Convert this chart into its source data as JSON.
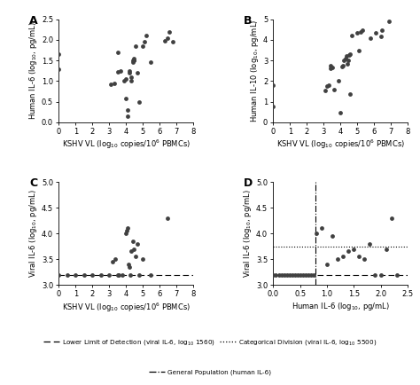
{
  "panel_A": {
    "label": "A",
    "x": [
      0.0,
      0.0,
      3.1,
      3.3,
      3.5,
      3.5,
      3.7,
      3.9,
      4.0,
      4.0,
      4.1,
      4.1,
      4.2,
      4.2,
      4.3,
      4.3,
      4.4,
      4.4,
      4.5,
      4.5,
      4.5,
      4.6,
      4.7,
      4.8,
      5.0,
      5.1,
      5.2,
      5.5,
      6.3,
      6.5,
      6.6,
      6.8
    ],
    "y": [
      1.65,
      1.28,
      0.92,
      0.95,
      1.22,
      1.7,
      1.25,
      1.0,
      0.57,
      1.05,
      0.15,
      0.3,
      1.2,
      1.25,
      1.0,
      1.1,
      1.45,
      1.5,
      1.5,
      1.55,
      1.5,
      1.85,
      1.2,
      0.5,
      1.85,
      1.95,
      2.1,
      1.45,
      1.98,
      2.05,
      2.2,
      1.95
    ],
    "xlabel": "KSHV VL (log$_{10}$ copies/10$^6$ PBMCs)",
    "ylabel": "Human IL-6 (log$_{10}$, pg/mL)",
    "xlim": [
      0.0,
      8.0
    ],
    "ylim": [
      0.0,
      2.5
    ],
    "xticks": [
      0.0,
      1.0,
      2.0,
      3.0,
      4.0,
      5.0,
      6.0,
      7.0,
      8.0
    ],
    "yticks": [
      0.0,
      0.5,
      1.0,
      1.5,
      2.0,
      2.5
    ]
  },
  "panel_B": {
    "label": "B",
    "x": [
      0.0,
      0.0,
      3.1,
      3.2,
      3.3,
      3.4,
      3.4,
      3.5,
      3.6,
      3.9,
      4.0,
      4.1,
      4.15,
      4.2,
      4.3,
      4.35,
      4.4,
      4.45,
      4.5,
      4.55,
      4.6,
      4.7,
      5.0,
      5.1,
      5.2,
      5.3,
      5.8,
      6.1,
      6.4,
      6.5,
      6.9
    ],
    "y": [
      1.78,
      0.75,
      1.55,
      1.75,
      1.78,
      2.6,
      2.75,
      2.65,
      1.58,
      2.0,
      0.45,
      2.72,
      2.75,
      3.0,
      3.1,
      3.2,
      2.85,
      3.0,
      3.25,
      1.35,
      3.3,
      4.2,
      4.35,
      3.5,
      4.4,
      4.45,
      4.1,
      4.35,
      4.15,
      4.45,
      4.9
    ],
    "xlabel": "KSHV VL (log$_{10}$ copies/10$^6$ PBMCs)",
    "ylabel": "Human IL-10 (log$_{10}$, pg/mL)",
    "xlim": [
      0.0,
      8.0
    ],
    "ylim": [
      0.0,
      5.0
    ],
    "xticks": [
      0.0,
      1.0,
      2.0,
      3.0,
      4.0,
      5.0,
      6.0,
      7.0,
      8.0
    ],
    "yticks": [
      0.0,
      1.0,
      2.0,
      3.0,
      4.0,
      5.0
    ]
  },
  "panel_C": {
    "label": "C",
    "x": [
      0.0,
      0.5,
      1.0,
      1.5,
      2.0,
      2.5,
      3.0,
      3.2,
      3.35,
      3.5,
      3.6,
      3.8,
      4.0,
      4.05,
      4.1,
      4.15,
      4.2,
      4.25,
      4.3,
      4.4,
      4.5,
      4.6,
      4.7,
      4.8,
      5.0,
      5.5,
      6.5
    ],
    "y": [
      3.2,
      3.2,
      3.2,
      3.2,
      3.2,
      3.2,
      3.2,
      3.45,
      3.5,
      3.2,
      3.2,
      3.2,
      4.0,
      4.05,
      4.1,
      3.4,
      3.35,
      3.2,
      3.65,
      3.85,
      3.7,
      3.55,
      3.8,
      3.2,
      3.5,
      3.2,
      4.3
    ],
    "xlabel": "KSHV VL (log$_{10}$ copies/10$^6$ PBMCs)",
    "ylabel": "Viral IL-6 (log$_{10}$, pg/mL)",
    "xlim": [
      0.0,
      8.0
    ],
    "ylim": [
      3.0,
      5.0
    ],
    "xticks": [
      0.0,
      1.0,
      2.0,
      3.0,
      4.0,
      5.0,
      6.0,
      7.0,
      8.0
    ],
    "yticks": [
      3.0,
      3.5,
      4.0,
      4.5,
      5.0
    ],
    "hline_lod": 3.2
  },
  "panel_D": {
    "label": "D",
    "x": [
      0.0,
      0.05,
      0.1,
      0.15,
      0.2,
      0.25,
      0.3,
      0.35,
      0.4,
      0.45,
      0.5,
      0.55,
      0.6,
      0.65,
      0.7,
      0.75,
      0.8,
      0.9,
      1.0,
      1.1,
      1.2,
      1.3,
      1.4,
      1.5,
      1.6,
      1.7,
      1.8,
      1.9,
      2.0,
      2.1,
      2.2,
      2.3
    ],
    "y": [
      3.2,
      3.2,
      3.2,
      3.2,
      3.2,
      3.2,
      3.2,
      3.2,
      3.2,
      3.2,
      3.2,
      3.2,
      3.2,
      3.2,
      3.2,
      3.2,
      4.0,
      4.1,
      3.4,
      3.95,
      3.5,
      3.55,
      3.65,
      3.7,
      3.55,
      3.5,
      3.8,
      3.2,
      3.2,
      3.7,
      4.3,
      3.2
    ],
    "xlabel": "Human IL-6 (log$_{10}$, pg/mL)",
    "ylabel": "Viral IL-6 (log$_{10}$, pg/mL)",
    "xlim": [
      0.0,
      2.5
    ],
    "ylim": [
      3.0,
      5.0
    ],
    "xticks": [
      0.0,
      0.5,
      1.0,
      1.5,
      2.0,
      2.5
    ],
    "yticks": [
      3.0,
      3.5,
      4.0,
      4.5,
      5.0
    ],
    "hline_lod": 3.2,
    "hline_cat": 3.74,
    "vline_gen": 0.78
  },
  "dot_color": "#404040",
  "dot_size": 12,
  "fig_width": 4.74,
  "fig_height": 4.34,
  "legend": {
    "dashed_label": "Lower Limit of Detection (viral IL-6, log$_{10}$ 1560)",
    "dotted_label": "Categorical Division (viral IL-6, log$_{10}$ 5500)",
    "dashdot_label": "General Population (human IL-6)"
  }
}
